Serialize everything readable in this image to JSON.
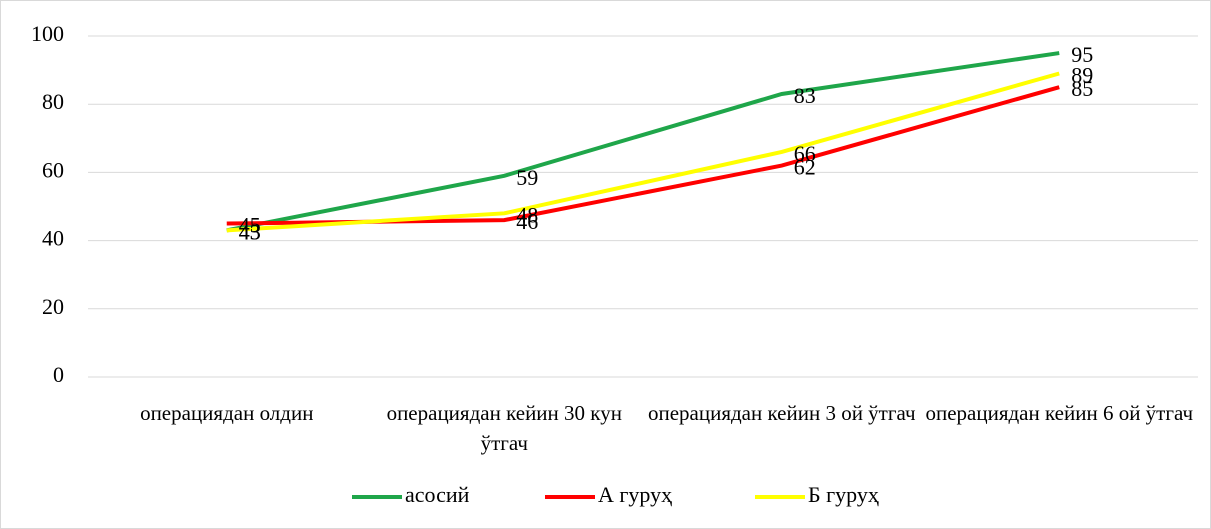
{
  "chart_data": {
    "type": "line",
    "categories": [
      "операциядан олдин",
      "операциядан кейин 30 кун ўтгач",
      "операциядан кейин 3 ой ўтгач",
      "операциядан кейин 6 ой ўтгач"
    ],
    "series": [
      {
        "name": "асосий",
        "color": "#1fa64a",
        "values": [
          43,
          59,
          83,
          95
        ]
      },
      {
        "name": "А гуруҳ",
        "color": "#ff0000",
        "values": [
          45,
          46,
          62,
          85
        ]
      },
      {
        "name": "Б гуруҳ",
        "color": "#ffff00",
        "values": [
          43,
          48,
          66,
          89
        ]
      }
    ],
    "ylim": [
      0,
      100
    ],
    "yticks": [
      0,
      20,
      40,
      60,
      80,
      100
    ],
    "grid": true,
    "legend": "bottom"
  }
}
